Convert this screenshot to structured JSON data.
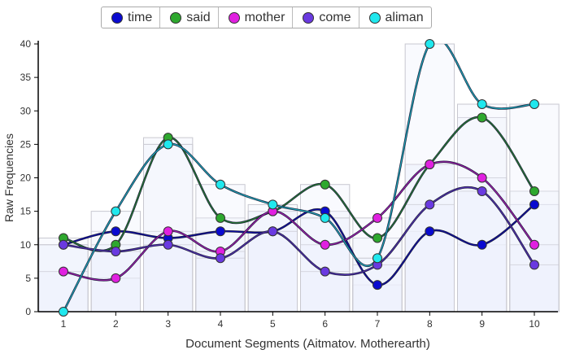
{
  "chart_data": {
    "type": "line",
    "title": "",
    "xlabel": "Document Segments (Aitmatov. Motherearth)",
    "ylabel": "Raw Frequencies",
    "x": [
      1,
      2,
      3,
      4,
      5,
      6,
      7,
      8,
      9,
      10
    ],
    "x_tick_labels": [
      "1",
      "2",
      "3",
      "4",
      "5",
      "6",
      "7",
      "8",
      "9",
      "10"
    ],
    "y_tick_labels": [
      "0",
      "5",
      "10",
      "15",
      "20",
      "25",
      "30",
      "35",
      "40"
    ],
    "ylim": [
      0,
      40
    ],
    "legend_position": "top",
    "series": [
      {
        "name": "time",
        "color": "#0a0ad0",
        "values": [
          10,
          12,
          11,
          12,
          12,
          15,
          4,
          12,
          10,
          16
        ]
      },
      {
        "name": "said",
        "color": "#2ea82e",
        "values": [
          11,
          10,
          26,
          14,
          15,
          19,
          11,
          22,
          29,
          18
        ]
      },
      {
        "name": "mother",
        "color": "#e020e0",
        "values": [
          6,
          5,
          12,
          9,
          15,
          10,
          14,
          22,
          20,
          10
        ]
      },
      {
        "name": "come",
        "color": "#6a3ae0",
        "values": [
          10,
          9,
          10,
          8,
          12,
          6,
          7,
          16,
          18,
          7
        ]
      },
      {
        "name": "aliman",
        "color": "#20e8ee",
        "values": [
          0,
          15,
          25,
          19,
          16,
          14,
          8,
          40,
          31,
          31
        ]
      }
    ]
  }
}
